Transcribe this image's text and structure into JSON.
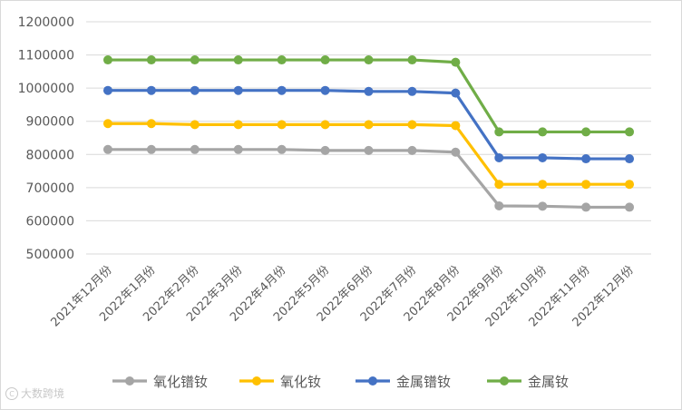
{
  "chart_data": {
    "type": "line",
    "title": "",
    "xlabel": "",
    "ylabel": "",
    "ylim": [
      500000,
      1200000
    ],
    "yticks": [
      "500000",
      "600000",
      "700000",
      "800000",
      "900000",
      "1000000",
      "1100000",
      "1200000"
    ],
    "grid": true,
    "legend_position": "bottom",
    "categories": [
      "2021年12月份",
      "2022年1月份",
      "2022年2月份",
      "2022年3月份",
      "2022年4月份",
      "2022年5月份",
      "2022年6月份",
      "2022年7月份",
      "2022年8月份",
      "2022年9月份",
      "2022年10月份",
      "2022年11月份",
      "2022年12月份"
    ],
    "series": [
      {
        "name": "氧化镨钕",
        "color": "#a5a5a5",
        "values": [
          815000,
          815000,
          815000,
          815000,
          815000,
          812000,
          812000,
          812000,
          807000,
          645000,
          644000,
          641000,
          641000
        ]
      },
      {
        "name": "氧化钕",
        "color": "#ffc000",
        "values": [
          893000,
          893000,
          890000,
          890000,
          890000,
          890000,
          890000,
          890000,
          887000,
          710000,
          710000,
          710000,
          710000
        ]
      },
      {
        "name": "金属镨钕",
        "color": "#4472c4",
        "values": [
          993000,
          993000,
          993000,
          993000,
          993000,
          993000,
          990000,
          990000,
          985000,
          790000,
          790000,
          787000,
          787000
        ]
      },
      {
        "name": "金属钕",
        "color": "#70ad47",
        "values": [
          1085000,
          1085000,
          1085000,
          1085000,
          1085000,
          1085000,
          1085000,
          1085000,
          1078000,
          868000,
          868000,
          868000,
          868000
        ]
      }
    ]
  },
  "watermark": {
    "text": "大数跨境"
  }
}
